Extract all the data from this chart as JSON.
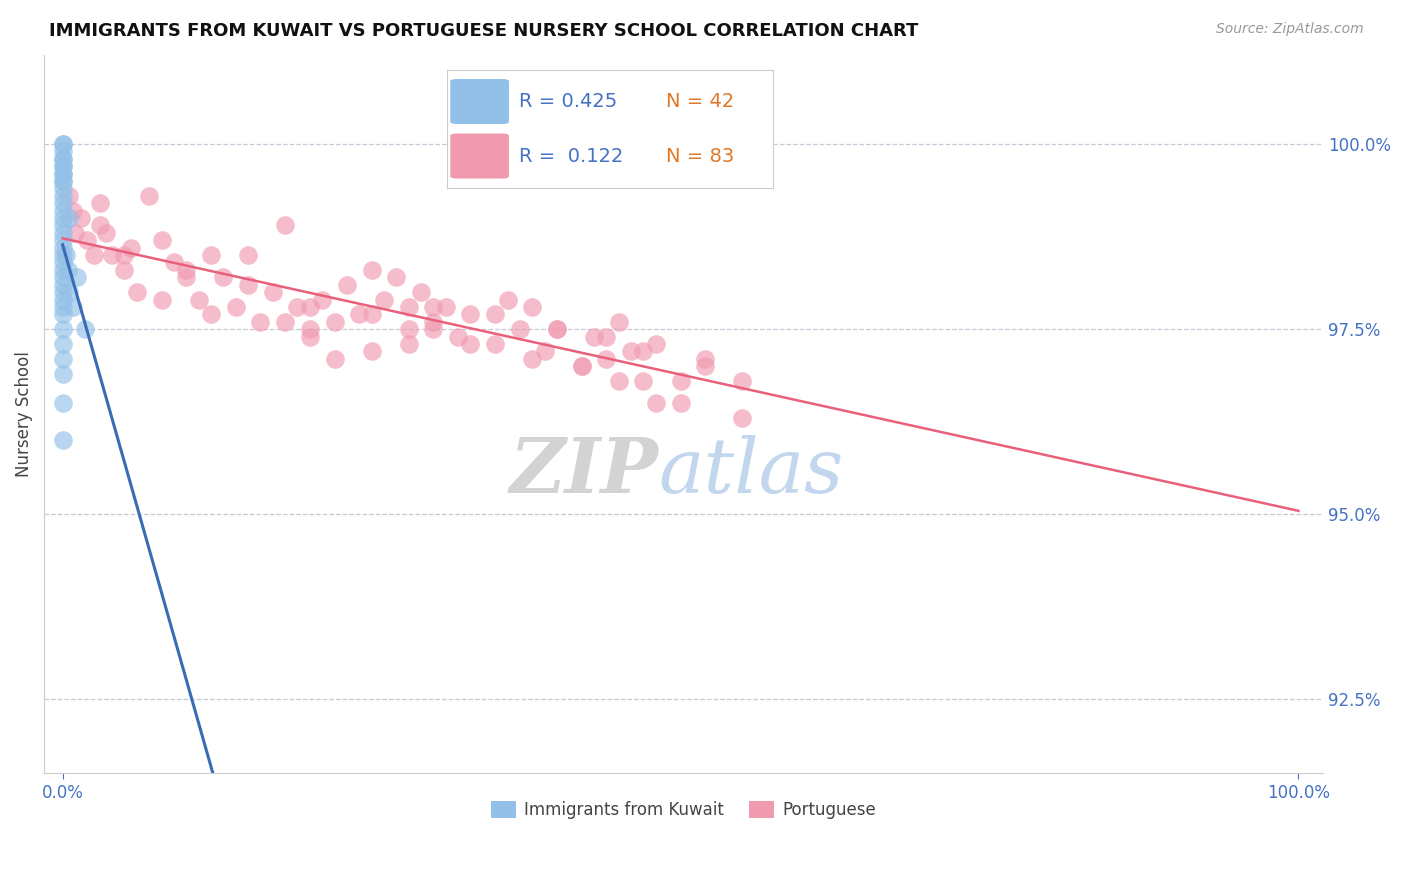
{
  "title": "IMMIGRANTS FROM KUWAIT VS PORTUGUESE NURSERY SCHOOL CORRELATION CHART",
  "source_text": "Source: ZipAtlas.com",
  "ylabel": "Nursery School",
  "y_min": 91.5,
  "y_max": 101.2,
  "x_min": -1.5,
  "x_max": 102.0,
  "legend_r_blue": "R = 0.425",
  "legend_n_blue": "N = 42",
  "legend_r_pink": "R =  0.122",
  "legend_n_pink": "N = 83",
  "color_blue": "#92C0E8",
  "color_pink": "#F09AB0",
  "color_blue_line": "#3A6CB5",
  "color_pink_line": "#E8607A",
  "color_axis_labels": "#4472C4",
  "color_n_labels": "#E07828",
  "grid_color": "#C8C8D8",
  "background_color": "#FFFFFF",
  "blue_x": [
    0.0,
    0.0,
    0.0,
    0.0,
    0.0,
    0.0,
    0.0,
    0.0,
    0.0,
    0.0,
    0.0,
    0.0,
    0.0,
    0.0,
    0.0,
    0.0,
    0.0,
    0.0,
    0.0,
    0.0,
    0.0,
    0.0,
    0.0,
    0.0,
    0.0,
    0.0,
    0.0,
    0.0,
    0.0,
    0.0,
    0.0,
    0.0,
    0.0,
    0.0,
    0.0,
    0.3,
    0.4,
    0.5,
    0.5,
    0.8,
    1.2,
    1.8
  ],
  "blue_y": [
    100.0,
    100.0,
    99.9,
    99.8,
    99.8,
    99.7,
    99.7,
    99.6,
    99.6,
    99.5,
    99.5,
    99.4,
    99.3,
    99.2,
    99.1,
    99.0,
    98.9,
    98.8,
    98.7,
    98.6,
    98.5,
    98.4,
    98.3,
    98.2,
    98.1,
    98.0,
    97.9,
    97.8,
    97.7,
    97.5,
    97.3,
    97.1,
    96.9,
    96.5,
    96.0,
    98.5,
    98.3,
    99.0,
    98.0,
    97.8,
    98.2,
    97.5
  ],
  "pink_x": [
    0.5,
    0.8,
    1.0,
    1.5,
    2.0,
    2.5,
    3.0,
    3.5,
    4.0,
    5.0,
    5.5,
    6.0,
    7.0,
    8.0,
    9.0,
    10.0,
    11.0,
    12.0,
    13.0,
    14.0,
    15.0,
    16.0,
    17.0,
    18.0,
    19.0,
    20.0,
    21.0,
    22.0,
    23.0,
    24.0,
    25.0,
    26.0,
    27.0,
    28.0,
    29.0,
    30.0,
    31.0,
    32.0,
    33.0,
    35.0,
    36.0,
    37.0,
    38.0,
    39.0,
    40.0,
    42.0,
    43.0,
    44.0,
    45.0,
    46.0,
    47.0,
    48.0,
    50.0,
    52.0,
    55.0,
    3.0,
    5.0,
    8.0,
    10.0,
    12.0,
    15.0,
    18.0,
    20.0,
    25.0,
    28.0,
    30.0,
    33.0,
    35.0,
    38.0,
    40.0,
    42.0,
    44.0,
    45.0,
    47.0,
    48.0,
    50.0,
    52.0,
    55.0,
    20.0,
    22.0,
    25.0,
    28.0,
    30.0
  ],
  "pink_y": [
    99.3,
    99.1,
    98.8,
    99.0,
    98.7,
    98.5,
    99.2,
    98.8,
    98.5,
    98.3,
    98.6,
    98.0,
    99.3,
    98.7,
    98.4,
    98.2,
    97.9,
    98.5,
    98.2,
    97.8,
    98.5,
    97.6,
    98.0,
    98.9,
    97.8,
    97.5,
    97.9,
    97.6,
    98.1,
    97.7,
    98.3,
    97.9,
    98.2,
    97.8,
    98.0,
    97.5,
    97.8,
    97.4,
    97.7,
    97.3,
    97.9,
    97.5,
    97.8,
    97.2,
    97.5,
    97.0,
    97.4,
    97.1,
    97.6,
    97.2,
    96.8,
    97.3,
    96.5,
    97.0,
    96.8,
    98.9,
    98.5,
    97.9,
    98.3,
    97.7,
    98.1,
    97.6,
    97.8,
    97.2,
    97.5,
    97.8,
    97.3,
    97.7,
    97.1,
    97.5,
    97.0,
    97.4,
    96.8,
    97.2,
    96.5,
    96.8,
    97.1,
    96.3,
    97.4,
    97.1,
    97.7,
    97.3,
    97.6
  ]
}
